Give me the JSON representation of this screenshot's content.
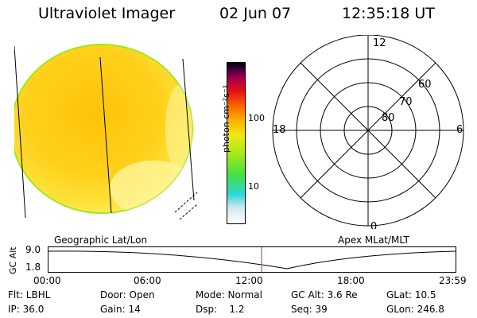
{
  "header": {
    "title": "Ultraviolet Imager",
    "date": "02 Jun 07",
    "time": "12:35:18 UT"
  },
  "colorbar": {
    "unit": "photon cm⁻²s⁻¹",
    "ticks": [
      "100",
      "10"
    ],
    "colors": [
      "#000000",
      "#a8004a",
      "#e81010",
      "#ff7000",
      "#ffb000",
      "#f0ea10",
      "#9ee81c",
      "#44e044",
      "#2fd6d6",
      "#ffffff"
    ]
  },
  "polar": {
    "mlt_labels": {
      "top": "12",
      "left": "18",
      "right": "6",
      "bottom": "0"
    },
    "lat_labels": [
      "60",
      "70",
      "80"
    ]
  },
  "strip": {
    "left_label": "Geographic Lat/Lon",
    "right_label": "Apex MLat/MLT",
    "ylabel": "GC Alt",
    "y_ticks": [
      "9.0",
      "1.8"
    ],
    "x_ticks": [
      "00:00",
      "06:00",
      "12:00",
      "18:00",
      "23:59"
    ]
  },
  "info": {
    "row1": {
      "flt": "Flt: LBHL",
      "door": "Door: Open",
      "mode": "Mode: Normal",
      "gcalt": "GC Alt: 3.6 Re",
      "glat": "GLat: 10.5"
    },
    "row2": {
      "ip": "IP: 36.0",
      "gain": "Gain: 14",
      "dsp": "Dsp:    1.2",
      "seq": "Seq: 39",
      "glon": "GLon: 246.8"
    }
  }
}
